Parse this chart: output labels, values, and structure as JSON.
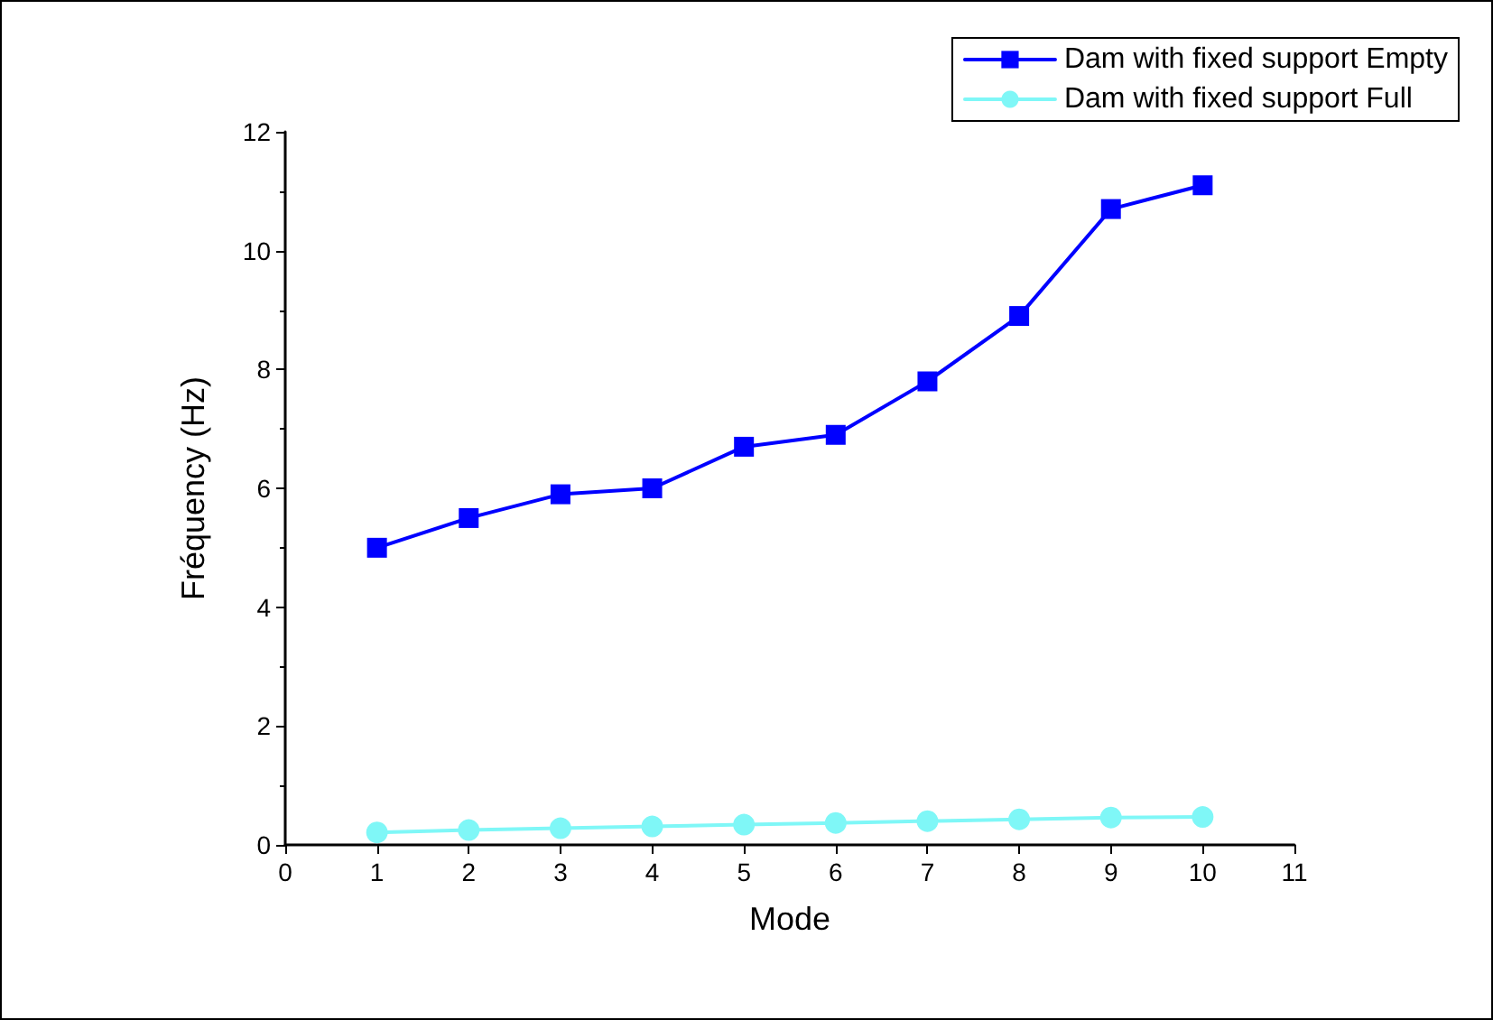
{
  "chart_data": {
    "type": "line",
    "xlabel": "Mode",
    "ylabel": "Fréquency (Hz)",
    "x": [
      1,
      2,
      3,
      4,
      5,
      6,
      7,
      8,
      9,
      10
    ],
    "xlim": [
      0,
      11
    ],
    "xticks": [
      0,
      1,
      2,
      3,
      4,
      5,
      6,
      7,
      8,
      9,
      10,
      11
    ],
    "ylim": [
      0,
      12
    ],
    "yticks": [
      0,
      2,
      4,
      6,
      8,
      10,
      12
    ],
    "grid": false,
    "legend": "top right",
    "line_style": "solid",
    "series": [
      {
        "name": "Dam with fixed support Empty",
        "color": "#0000ff",
        "marker": "square",
        "values": [
          5.0,
          5.5,
          5.9,
          6.0,
          6.7,
          6.9,
          7.8,
          8.9,
          10.7,
          11.1
        ]
      },
      {
        "name": "Dam with fixed support Full",
        "color": "#7ff7f7",
        "marker": "circle",
        "values": [
          0.21,
          0.25,
          0.28,
          0.31,
          0.34,
          0.37,
          0.4,
          0.43,
          0.46,
          0.47
        ]
      }
    ]
  }
}
